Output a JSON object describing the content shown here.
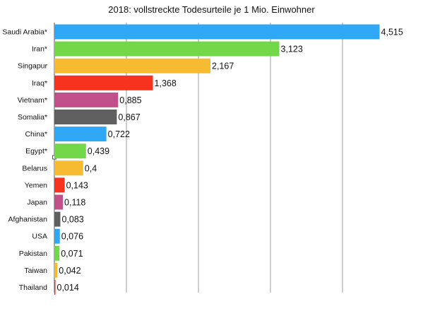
{
  "chart_data": {
    "type": "bar",
    "orientation": "horizontal",
    "title": "2018: vollstreckte Todesurteile je 1 Mio. Einwohner",
    "xlabel": "",
    "ylabel": "",
    "xlim": [
      0,
      5
    ],
    "grid": "vertical gridlines",
    "legend": "none",
    "categories": [
      "Saudi Arabia*",
      "Iran*",
      "Singapur",
      "Iraq*",
      "Vietnam*",
      "Somalia*",
      "China*",
      "Egypt*",
      "Belarus",
      "Yemen",
      "Japan",
      "Afghanistan",
      "USA",
      "Pakistan",
      "Taiwan",
      "Thailand"
    ],
    "values": [
      4.515,
      3.123,
      2.167,
      1.368,
      0.885,
      0.867,
      0.722,
      0.439,
      0.4,
      0.143,
      0.118,
      0.083,
      0.076,
      0.071,
      0.042,
      0.014
    ],
    "value_labels": [
      "4,515",
      "3,123",
      "2,167",
      "1,368",
      "0,885",
      "0,867",
      "0,722",
      "0,439",
      "0,4",
      "0,143",
      "0,118",
      "0,083",
      "0,076",
      "0,071",
      "0,042",
      "0,014"
    ],
    "colors": [
      "#2ea8f5",
      "#72d84a",
      "#f7bb31",
      "#f7321f",
      "#c14f8a",
      "#5f5f5f",
      "#2ea8f5",
      "#72d84a",
      "#f7bb31",
      "#f7321f",
      "#c14f8a",
      "#5f5f5f",
      "#2ea8f5",
      "#72d84a",
      "#f7bb31",
      "#f7321f"
    ],
    "gridline_color": "#9e9e9e",
    "axis_color": "#555555"
  }
}
